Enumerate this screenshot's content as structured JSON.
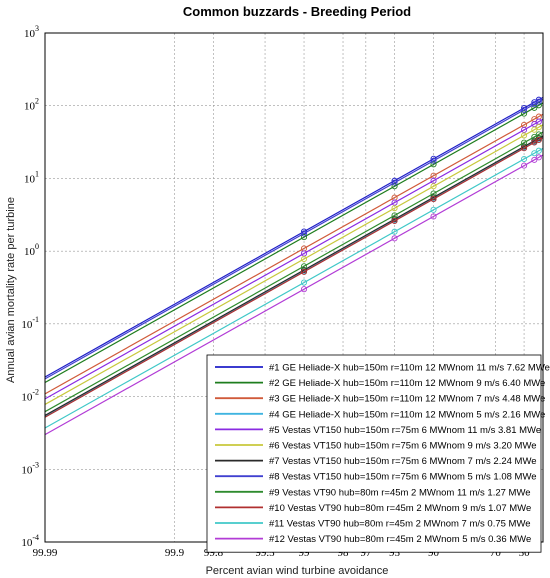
{
  "chart_data": {
    "type": "line",
    "title": "Common buzzards - Breeding Period",
    "xlabel": "Percent avian wind turbine avoidance",
    "ylabel": "Annual avian mortality rate per turbine",
    "yscale": "log",
    "ylim": [
      0.0001,
      1000
    ],
    "xscale": "log of (100 - avoidance)",
    "xlim_avoidance": [
      99.99,
      30
    ],
    "x_ticks": [
      {
        "value": 99.99,
        "label": "99.99"
      },
      {
        "value": 99.9,
        "label": "99.9"
      },
      {
        "value": 99.8,
        "label": "99.8"
      },
      {
        "value": 99.5,
        "label": "99.5"
      },
      {
        "value": 99,
        "label": "99"
      },
      {
        "value": 98,
        "label": "98"
      },
      {
        "value": 97,
        "label": "97"
      },
      {
        "value": 95,
        "label": "95"
      },
      {
        "value": 90,
        "label": "90"
      },
      {
        "value": 70,
        "label": "70"
      },
      {
        "value": 50,
        "label": "50"
      }
    ],
    "y_ticks": [
      {
        "value": 1000,
        "base": "10",
        "exp": "3"
      },
      {
        "value": 100,
        "base": "10",
        "exp": "2"
      },
      {
        "value": 10,
        "base": "10",
        "exp": "1"
      },
      {
        "value": 1,
        "base": "10",
        "exp": "0"
      },
      {
        "value": 0.1,
        "base": "10",
        "exp": "-1"
      },
      {
        "value": 0.01,
        "base": "10",
        "exp": "-2"
      },
      {
        "value": 0.001,
        "base": "10",
        "exp": "-3"
      },
      {
        "value": 0.0001,
        "base": "10",
        "exp": "-4"
      }
    ],
    "grid": true,
    "legend_position": "bottom-right",
    "marker_avoidance": [
      99,
      95,
      90,
      50,
      40,
      35
    ],
    "series": [
      {
        "name": "#1 GE Heliade-X hub=150m r=110m 12 MWnom 11 m/s 7.62 MWe",
        "color": "#1f1fc8",
        "y_at_99": 1.86
      },
      {
        "name": "#2 GE Heliade-X hub=150m r=110m 12 MWnom 9 m/s 6.40 MWe",
        "color": "#1e7d1e",
        "y_at_99": 1.56
      },
      {
        "name": "#3 GE Heliade-X hub=150m r=110m 12 MWnom 7 m/s 4.48 MWe",
        "color": "#d05a3a",
        "y_at_99": 1.09
      },
      {
        "name": "#4 GE Heliade-X hub=150m r=110m 12 MWnom 5 m/s 2.16 MWe",
        "color": "#3fb4e0",
        "y_at_99": 0.53
      },
      {
        "name": "#5 Vestas VT150 hub=150m r=75m 6 MWnom 11 m/s 3.81 MWe",
        "color": "#8a2be2",
        "y_at_99": 0.93
      },
      {
        "name": "#6 Vestas VT150 hub=150m r=75m 6 MWnom 9 m/s 3.20 MWe",
        "color": "#c8c83c",
        "y_at_99": 0.78
      },
      {
        "name": "#7 Vestas VT150 hub=150m r=75m 6 MWnom 7 m/s 2.24 MWe",
        "color": "#2a2a2a",
        "y_at_99": 0.55
      },
      {
        "name": "#8 Vestas VT150 hub=150m r=75m 6 MWnom 5 m/s 1.08 MWe",
        "color": "#4040d0",
        "y_at_99": 1.75
      },
      {
        "name": "#9 Vestas VT90 hub=80m r=45m 2 MWnom 11 m/s 1.27 MWe",
        "color": "#2e8b2e",
        "y_at_99": 0.62
      },
      {
        "name": "#10 Vestas VT90 hub=80m r=45m 2 MWnom 9 m/s 1.07 MWe",
        "color": "#b03030",
        "y_at_99": 0.52
      },
      {
        "name": "#11 Vestas VT90 hub=80m r=45m 2 MWnom 7 m/s 0.75 MWe",
        "color": "#40c8c8",
        "y_at_99": 0.37
      },
      {
        "name": "#12 Vestas VT90 hub=80m r=45m 2 MWnom 5 m/s 0.36 MWe",
        "color": "#b23cd6",
        "y_at_99": 0.3
      }
    ]
  }
}
